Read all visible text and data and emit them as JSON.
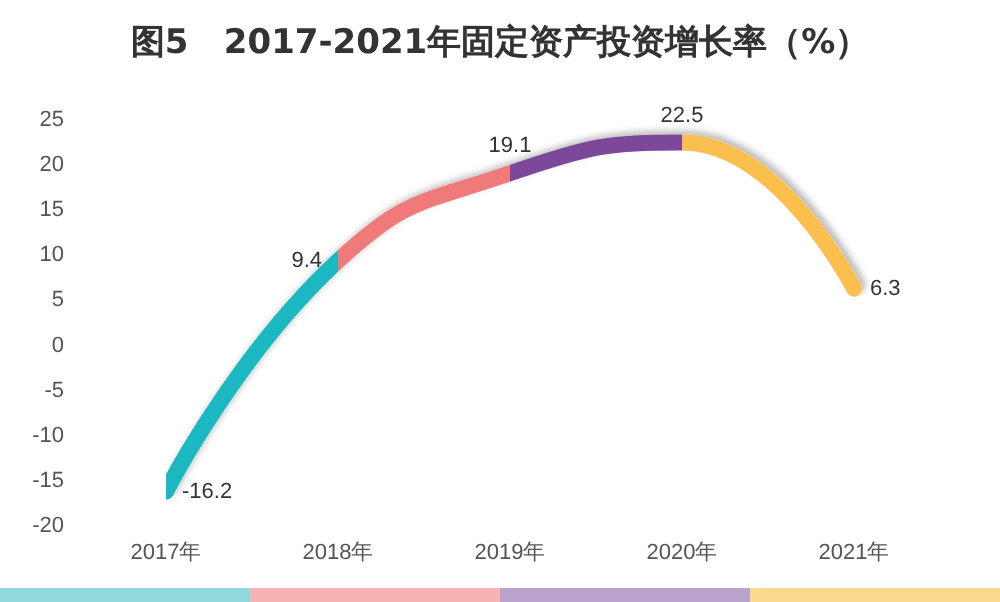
{
  "chart_data": {
    "type": "line",
    "title": "图5   2017-2021年固定资产投资增长率（%）",
    "categories": [
      "2017年",
      "2018年",
      "2019年",
      "2020年",
      "2021年"
    ],
    "values": [
      -16.2,
      9.4,
      19.1,
      22.5,
      6.3
    ],
    "colors": [
      "#1bb8c1",
      "#f07a7a",
      "#7b4a9a",
      "#fbbf4e",
      "#fbbf4e"
    ],
    "ylim": [
      -20,
      25
    ],
    "yticks": [
      -20,
      -15,
      -10,
      -5,
      0,
      5,
      10,
      15,
      20,
      25
    ],
    "grid": false,
    "marker": "none",
    "line_style": "solid",
    "data_labels": true
  }
}
